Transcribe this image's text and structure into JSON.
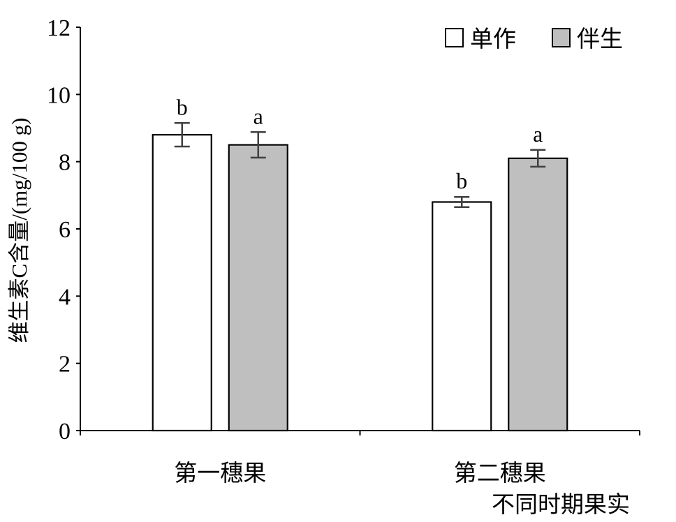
{
  "chart_data": {
    "type": "bar",
    "ylabel": "维生素C含量/(mg/100 g)",
    "xlabel": "不同时期果实",
    "categories": [
      "第一穗果",
      "第二穗果"
    ],
    "ylim": [
      0,
      12
    ],
    "yticks": [
      0,
      2,
      4,
      6,
      8,
      10,
      12
    ],
    "grid": false,
    "legend_position": "top-right",
    "series": [
      {
        "name": "单作",
        "color": "#ffffff",
        "values": [
          8.8,
          6.8
        ],
        "errors": [
          0.35,
          0.15
        ],
        "significance": [
          "b",
          "b"
        ]
      },
      {
        "name": "伴生",
        "color": "#bfbfbf",
        "values": [
          8.5,
          8.1
        ],
        "errors": [
          0.38,
          0.25
        ],
        "significance": [
          "a",
          "a"
        ]
      }
    ]
  }
}
